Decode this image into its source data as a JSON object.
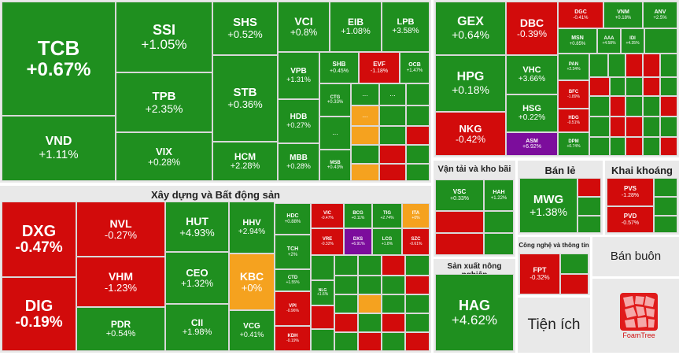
{
  "colors": {
    "up": "#1f8f1f",
    "down": "#d20b0b",
    "flat": "#f5a21f",
    "ceiling": "#7c0d9c"
  },
  "sectors": {
    "construction_re": "Xây dựng và Bất động sản",
    "transport": "Vận tải và kho bãi",
    "retail": "Bán lẻ",
    "mining": "Khai khoáng",
    "agriculture": "Sản xuất nông nghiệp",
    "it": "Công nghệ và thông tin",
    "wholesale": "Bán buôn",
    "utilities": "Tiện ích"
  },
  "finance": [
    {
      "t": "TCB",
      "p": "+0.67%"
    },
    {
      "t": "VND",
      "p": "+1.11%"
    },
    {
      "t": "SSI",
      "p": "+1.05%"
    },
    {
      "t": "TPB",
      "p": "+2.35%"
    },
    {
      "t": "VIX",
      "p": "+0.28%"
    },
    {
      "t": "SHS",
      "p": "+0.52%"
    },
    {
      "t": "STB",
      "p": "+0.36%"
    },
    {
      "t": "HCM",
      "p": "+2.28%"
    },
    {
      "t": "VCI",
      "p": "+0.8%"
    },
    {
      "t": "EIB",
      "p": "+1.08%"
    },
    {
      "t": "LPB",
      "p": "+3.58%"
    },
    {
      "t": "VPB",
      "p": "+1.31%"
    },
    {
      "t": "SHB",
      "p": "+0.45%"
    },
    {
      "t": "EVF",
      "p": "-1.18%"
    },
    {
      "t": "OCB",
      "p": "+1.47%"
    },
    {
      "t": "HDB",
      "p": "+0.27%"
    },
    {
      "t": "CTG",
      "p": "+0.33%"
    },
    {
      "t": "MBB",
      "p": "+0.28%"
    },
    {
      "t": "MSB",
      "p": "+0.43%"
    }
  ],
  "industry": [
    {
      "t": "GEX",
      "p": "+0.64%"
    },
    {
      "t": "DBC",
      "p": "-0.39%"
    },
    {
      "t": "HPG",
      "p": "+0.18%"
    },
    {
      "t": "VHC",
      "p": "+3.66%"
    },
    {
      "t": "NKG",
      "p": "-0.42%"
    },
    {
      "t": "HSG",
      "p": "+0.22%"
    },
    {
      "t": "ASM",
      "p": "+6.92%"
    },
    {
      "t": "DGC",
      "p": "-0.41%"
    },
    {
      "t": "VNM",
      "p": "+0.18%"
    },
    {
      "t": "ANV",
      "p": "+2.5%"
    },
    {
      "t": "MSN",
      "p": "+0.85%"
    },
    {
      "t": "AAA",
      "p": "+4.58%"
    },
    {
      "t": "IDI",
      "p": "+4.35%"
    },
    {
      "t": "PAN",
      "p": "+2.34%"
    },
    {
      "t": "BFC",
      "p": "-1.89%"
    },
    {
      "t": "HDG",
      "p": "-0.51%"
    },
    {
      "t": "DPM",
      "p": "+0.74%"
    }
  ],
  "construction": [
    {
      "t": "DXG",
      "p": "-0.47%"
    },
    {
      "t": "DIG",
      "p": "-0.19%"
    },
    {
      "t": "NVL",
      "p": "-0.27%"
    },
    {
      "t": "VHM",
      "p": "-1.23%"
    },
    {
      "t": "PDR",
      "p": "+0.54%"
    },
    {
      "t": "HUT",
      "p": "+4.93%"
    },
    {
      "t": "CEO",
      "p": "+1.32%"
    },
    {
      "t": "CII",
      "p": "+1.98%"
    },
    {
      "t": "HHV",
      "p": "+2.94%"
    },
    {
      "t": "KBC",
      "p": "+0%"
    },
    {
      "t": "VCG",
      "p": "+0.41%"
    },
    {
      "t": "HDC",
      "p": "+0.88%"
    },
    {
      "t": "VIC",
      "p": "-0.47%"
    },
    {
      "t": "BCG",
      "p": "+0.11%"
    },
    {
      "t": "TIG",
      "p": "+2.74%"
    },
    {
      "t": "ITA",
      "p": "+0%"
    },
    {
      "t": "TCH",
      "p": "+2%"
    },
    {
      "t": "VRE",
      "p": "-0.32%"
    },
    {
      "t": "DXS",
      "p": "+6.91%"
    },
    {
      "t": "LCG",
      "p": "+1.8%"
    },
    {
      "t": "SZC",
      "p": "-0.61%"
    },
    {
      "t": "CTD",
      "p": "+1.55%"
    },
    {
      "t": "NLG",
      "p": "+1.6%"
    },
    {
      "t": "VPI",
      "p": "-0.96%"
    },
    {
      "t": "KDH",
      "p": "-0.19%"
    }
  ],
  "transport": [
    {
      "t": "VSC",
      "p": "+0.33%"
    },
    {
      "t": "HAH",
      "p": "+1.22%"
    }
  ],
  "retail": [
    {
      "t": "MWG",
      "p": "+1.38%"
    }
  ],
  "mining": [
    {
      "t": "PVS",
      "p": "-1.28%"
    },
    {
      "t": "PVD",
      "p": "-0.57%"
    }
  ],
  "agri": [
    {
      "t": "HAG",
      "p": "+4.62%"
    }
  ],
  "it": [
    {
      "t": "FPT",
      "p": "-0.32%"
    }
  ],
  "logo": "FoamTree",
  "more": "..."
}
